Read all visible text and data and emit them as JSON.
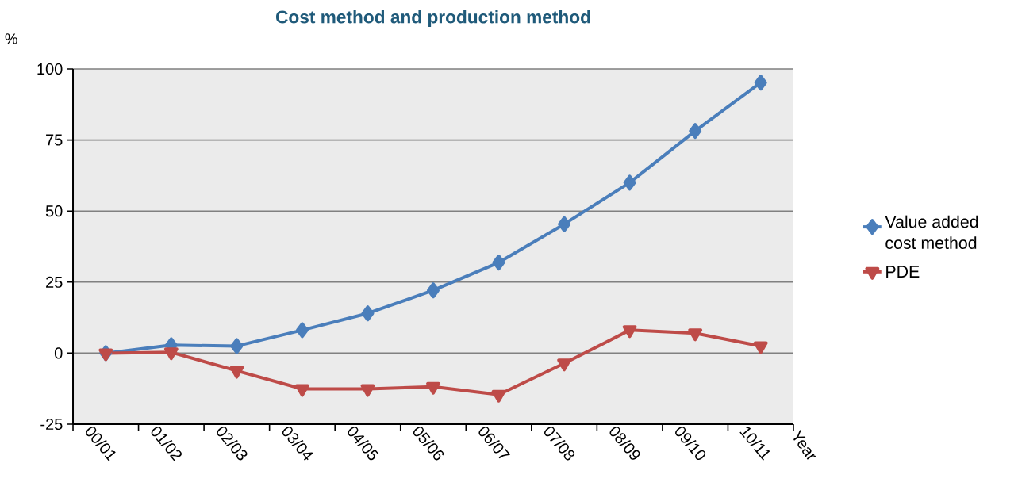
{
  "chart_data": {
    "type": "line",
    "title": "Cost method and production method",
    "ylabel": "%",
    "xlabel": "Year",
    "categories": [
      "00/01",
      "01/02",
      "02/03",
      "03/04",
      "04/05",
      "05/06",
      "06/07",
      "07/08",
      "08/09",
      "09/10",
      "10/11"
    ],
    "series": [
      {
        "name": "Value added cost method",
        "color": "#4a7ebb",
        "marker": "diamond",
        "values": [
          0,
          2.8,
          2.5,
          8.1,
          14,
          22.1,
          31.9,
          45.4,
          60,
          78.2,
          95.2
        ]
      },
      {
        "name": "PDE",
        "color": "#be4b48",
        "marker": "triangle",
        "values": [
          0,
          0.3,
          -6.2,
          -12.6,
          -12.6,
          -11.8,
          -14.6,
          -3.6,
          8.1,
          7,
          2.5
        ]
      }
    ],
    "ylim": [
      -25,
      100
    ],
    "yticks": [
      -25,
      0,
      25,
      50,
      75,
      100
    ],
    "grid": "y",
    "legend": "right",
    "line_style": "solid"
  }
}
